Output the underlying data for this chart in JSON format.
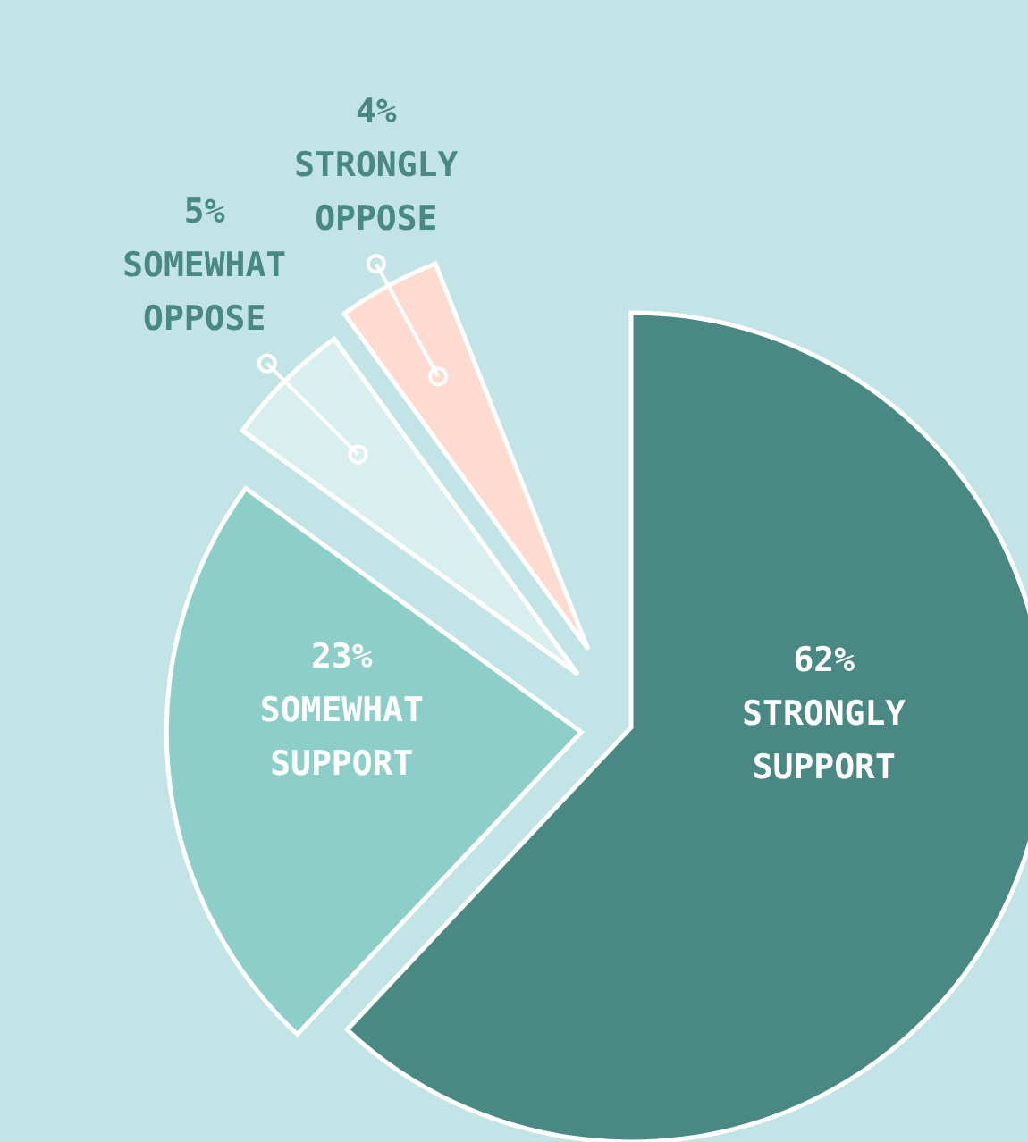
{
  "chart_data": {
    "type": "pie",
    "categories": [
      "STRONGLY SUPPORT",
      "SOMEWHAT SUPPORT",
      "SOMEWHAT OPPOSE",
      "STRONGLY OPPOSE"
    ],
    "values": [
      62,
      23,
      5,
      4
    ],
    "colors": [
      "#4a8884",
      "#8dcfc8",
      "#d9eeee",
      "#fddbd0"
    ],
    "value_labels": [
      "62%",
      "23%",
      "5%",
      "4%"
    ]
  }
}
